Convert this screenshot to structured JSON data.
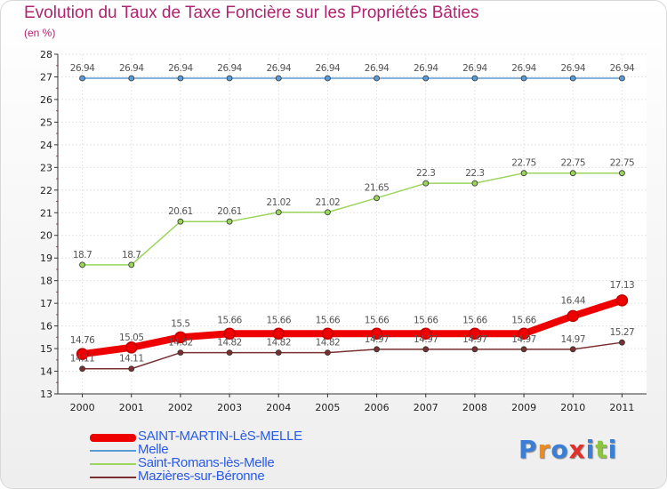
{
  "title": "Evolution du Taux de Taxe Foncière sur les Propriétés Bâties",
  "subtitle": "(en %)",
  "logo": {
    "text": "Proxiti",
    "colors": [
      "#3a7fd5",
      "#f08a18",
      "#3a7fd5",
      "#e0312a",
      "#3a7fd5",
      "#8bc43f",
      "#3a7fd5"
    ]
  },
  "chart_data": {
    "type": "line",
    "x": [
      "2000",
      "2001",
      "2002",
      "2003",
      "2004",
      "2005",
      "2006",
      "2007",
      "2008",
      "2009",
      "2010",
      "2011"
    ],
    "ylim": [
      13,
      28
    ],
    "yticks": [
      "13",
      "14",
      "15",
      "16",
      "17",
      "18",
      "19",
      "20",
      "21",
      "22",
      "23",
      "24",
      "25",
      "26",
      "27",
      "28"
    ],
    "grid": true,
    "legend_position": "bottom-left",
    "series": [
      {
        "name": "SAINT-MARTIN-LèS-MELLE",
        "color": "#ee0000",
        "width": 8,
        "values": [
          14.76,
          15.05,
          15.5,
          15.66,
          15.66,
          15.66,
          15.66,
          15.66,
          15.66,
          15.66,
          16.44,
          17.13
        ],
        "labels": [
          "14.76",
          "15.05",
          "15.5",
          "15.66",
          "15.66",
          "15.66",
          "15.66",
          "15.66",
          "15.66",
          "15.66",
          "16.44",
          "17.13"
        ]
      },
      {
        "name": "Melle",
        "color": "#5b9bd5",
        "width": 1.5,
        "values": [
          26.94,
          26.94,
          26.94,
          26.94,
          26.94,
          26.94,
          26.94,
          26.94,
          26.94,
          26.94,
          26.94,
          26.94
        ],
        "labels": [
          "26.94",
          "26.94",
          "26.94",
          "26.94",
          "26.94",
          "26.94",
          "26.94",
          "26.94",
          "26.94",
          "26.94",
          "26.94",
          "26.94"
        ]
      },
      {
        "name": "Saint-Romans-lès-Melle",
        "color": "#9bd45c",
        "width": 1.5,
        "values": [
          18.7,
          18.7,
          20.61,
          20.61,
          21.02,
          21.02,
          21.65,
          22.3,
          22.3,
          22.75,
          22.75,
          22.75
        ],
        "labels": [
          "18.7",
          "18.7",
          "20.61",
          "20.61",
          "21.02",
          "21.02",
          "21.65",
          "22.3",
          "22.3",
          "22.75",
          "22.75",
          "22.75"
        ]
      },
      {
        "name": "Mazières-sur-Béronne",
        "color": "#7a3030",
        "width": 1.5,
        "values": [
          14.11,
          14.11,
          14.82,
          14.82,
          14.82,
          14.82,
          14.97,
          14.97,
          14.97,
          14.97,
          14.97,
          15.27
        ],
        "labels": [
          "14.11",
          "14.11",
          "14.82",
          "14.82",
          "14.82",
          "14.82",
          "14.97",
          "14.97",
          "14.97",
          "14.97",
          "14.97",
          "15.27"
        ]
      }
    ]
  }
}
